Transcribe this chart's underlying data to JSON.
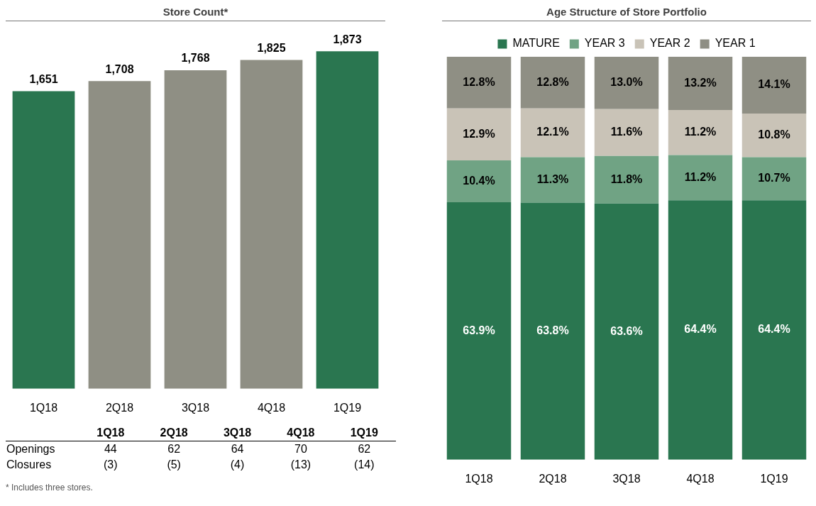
{
  "chart_data": [
    {
      "type": "bar",
      "title": "Store Count*",
      "categories": [
        "1Q18",
        "2Q18",
        "3Q18",
        "4Q18",
        "1Q19"
      ],
      "values": [
        1651,
        1708,
        1768,
        1825,
        1873
      ],
      "colors": [
        "#2a7650",
        "#8f8f84",
        "#8f8f84",
        "#8f8f84",
        "#2a7650"
      ],
      "value_labels": [
        "1,651",
        "1,708",
        "1,768",
        "1,825",
        "1,873"
      ],
      "tick_labels": "x",
      "grid": false,
      "legend": false
    },
    {
      "type": "other",
      "categories": [
        "1Q18",
        "2Q18",
        "3Q18",
        "4Q18",
        "1Q19"
      ],
      "series": [
        {
          "name": "Openings",
          "values": [
            44,
            62,
            64,
            70,
            62
          ],
          "value_labels": [
            "44",
            "62",
            "64",
            "70",
            "62"
          ]
        },
        {
          "name": "Closures",
          "values": [
            -3,
            -5,
            -4,
            -13,
            -14
          ],
          "value_labels": [
            "(3)",
            "(5)",
            "(4)",
            "(13)",
            "(14)"
          ]
        }
      ],
      "annotations": [
        "* Includes three stores."
      ]
    },
    {
      "type": "bar",
      "title": "Age Structure of Store Portfolio",
      "categories": [
        "1Q18",
        "2Q18",
        "3Q18",
        "4Q18",
        "1Q19"
      ],
      "stacked": true,
      "ylim": [
        0,
        100
      ],
      "tick_labels": "x",
      "grid": false,
      "legend": "top",
      "series": [
        {
          "name": "MATURE",
          "color": "#2a7650",
          "values": [
            63.9,
            63.8,
            63.6,
            64.4,
            64.4
          ],
          "value_labels": [
            "63.9%",
            "63.8%",
            "63.6%",
            "64.4%",
            "64.4%"
          ]
        },
        {
          "name": "YEAR 3",
          "color": "#70a384",
          "values": [
            10.4,
            11.3,
            11.8,
            11.2,
            10.7
          ],
          "value_labels": [
            "10.4%",
            "11.3%",
            "11.8%",
            "11.2%",
            "10.7%"
          ]
        },
        {
          "name": "YEAR 2",
          "color": "#c9c3b7",
          "values": [
            12.9,
            12.1,
            11.6,
            11.2,
            10.8
          ],
          "value_labels": [
            "12.9%",
            "12.1%",
            "11.6%",
            "11.2%",
            "10.8%"
          ]
        },
        {
          "name": "YEAR 1",
          "color": "#8f8f84",
          "values": [
            12.8,
            12.8,
            13.0,
            13.2,
            14.1
          ],
          "value_labels": [
            "12.8%",
            "12.8%",
            "13.0%",
            "13.2%",
            "14.1%"
          ]
        }
      ]
    }
  ]
}
